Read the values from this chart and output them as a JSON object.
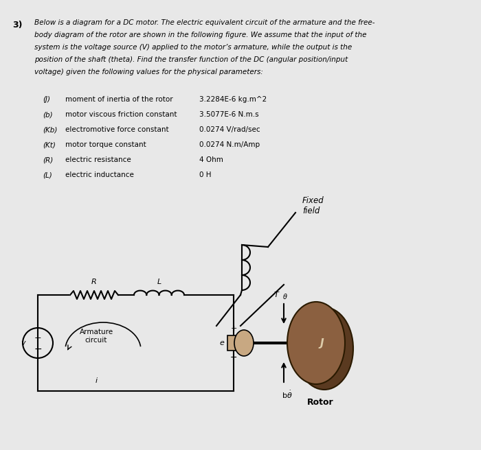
{
  "bg_color": "#e8e8e8",
  "params": [
    [
      "(J)",
      "moment of inertia of the rotor",
      "3.2284E-6 kg.m^2"
    ],
    [
      "(b)",
      "motor viscous friction constant",
      "3.5077E-6 N.m.s"
    ],
    [
      "(Kb)",
      "electromotive force constant",
      "0.0274 V/rad/sec"
    ],
    [
      "(Kt)",
      "motor torque constant",
      "0.0274 N.m/Amp"
    ],
    [
      "(R)",
      "electric resistance",
      "4 Ohm"
    ],
    [
      "(L)",
      "electric inductance",
      "0 H"
    ]
  ],
  "question_lines": [
    "Below is a diagram for a DC motor. The electric equivalent circuit of the armature and the free-",
    "body diagram of the rotor are shown in the following figure. We assume that the input of the",
    "system is the voltage source (V) applied to the motor’s armature, while the output is the",
    "position of the shaft (theta). Find the transfer function of the DC (angular position/input",
    "voltage) given the following values for the physical parameters:"
  ]
}
